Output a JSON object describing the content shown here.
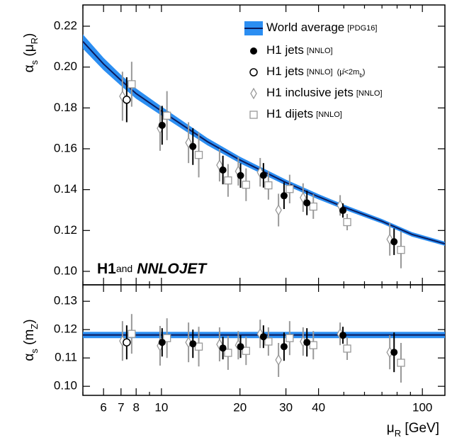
{
  "chart_data": [
    {
      "type": "errorbar",
      "log_x": true,
      "legend": "upper right",
      "ylabel": {
        "symbol": "α",
        "sub": "s",
        "open": " (μ",
        "sub2": "R",
        "close": ")"
      },
      "annotation": {
        "bold": "H1",
        "small": "and",
        "italic": "NNLOJET"
      },
      "xlim": [
        5,
        122
      ],
      "ylim": [
        0.0934,
        0.2304
      ],
      "yticks": [
        {
          "value": 0.1,
          "label": "0.10"
        },
        0.12,
        0.14,
        0.16,
        0.18,
        {
          "value": 0.2,
          "label": "0.20"
        },
        0.22
      ],
      "series": [
        {
          "name": "World average",
          "note": "[PDG16]",
          "style": "band",
          "color": "#2b8ef2",
          "line_color": "#0b1a5c",
          "x": [
            5,
            6,
            7,
            8,
            10,
            15,
            20,
            30,
            40,
            50,
            70,
            91.2,
            122
          ],
          "values": [
            0.2125,
            0.2015,
            0.1935,
            0.187,
            0.1785,
            0.1635,
            0.1545,
            0.1435,
            0.1365,
            0.1315,
            0.1245,
            0.1181,
            0.1135
          ],
          "errors": [
            0.0035,
            0.003,
            0.0027,
            0.0025,
            0.0022,
            0.0018,
            0.0016,
            0.0014,
            0.0013,
            0.0012,
            0.0011,
            0.0011,
            0.001
          ]
        },
        {
          "name": "H1 jets",
          "note": "[NNLO]",
          "style": "filled-circle",
          "color": "#000000",
          "x": [
            10.06,
            13.2,
            17.2,
            20.1,
            24.6,
            29.5,
            36.1,
            49.6,
            77.9
          ],
          "values": [
            0.1715,
            0.1611,
            0.1496,
            0.1469,
            0.147,
            0.137,
            0.1335,
            0.1298,
            0.1145
          ],
          "errors": [
            0.0095,
            0.009,
            0.007,
            0.006,
            0.006,
            0.0065,
            0.006,
            0.0035,
            0.0065
          ]
        },
        {
          "name": "H1 jets",
          "note": "[NNLO]",
          "condition": "(μ̄<2m",
          "condition_sub": "b",
          "condition_close": ")",
          "style": "open-circle",
          "color": "#000000",
          "x": [
            7.36
          ],
          "values": [
            0.184
          ],
          "errors": [
            0.011
          ]
        },
        {
          "name": "H1 inclusive jets",
          "note": "[NNLO]",
          "style": "diamond",
          "color": "#999999",
          "x": [
            7.09,
            9.88,
            12.7,
            16.7,
            19.7,
            23.9,
            28.1,
            34.9,
            48.4,
            75.0
          ],
          "values": [
            0.1857,
            0.17,
            0.163,
            0.152,
            0.149,
            0.1485,
            0.13,
            0.1361,
            0.1323,
            0.1157
          ],
          "errors": [
            0.012,
            0.011,
            0.01,
            0.008,
            0.007,
            0.007,
            0.008,
            0.007,
            0.005,
            0.008
          ]
        },
        {
          "name": "H1 dijets",
          "note": "[NNLO]",
          "style": "square",
          "color": "#999999",
          "x": [
            7.69,
            10.5,
            13.9,
            18.0,
            21.1,
            25.7,
            31.0,
            38.2,
            51.5,
            82.8
          ],
          "values": [
            0.1916,
            0.1762,
            0.157,
            0.1445,
            0.1424,
            0.1421,
            0.1403,
            0.1317,
            0.1241,
            0.1105
          ],
          "errors": [
            0.011,
            0.012,
            0.011,
            0.008,
            0.008,
            0.007,
            0.007,
            0.006,
            0.004,
            0.009
          ]
        }
      ]
    },
    {
      "type": "errorbar",
      "log_x": true,
      "ylabel": {
        "symbol": "α",
        "sub": "s",
        "open": " (m",
        "sub2": "Z",
        "close": ")"
      },
      "xlabel": {
        "symbol": "μ",
        "sub": "R",
        "unit": " [GeV]"
      },
      "xlim": [
        5,
        122
      ],
      "ylim": [
        0.0968,
        0.1358
      ],
      "xticks": [
        6,
        7,
        8,
        10,
        20,
        30,
        40,
        100
      ],
      "xminor": [
        5,
        9,
        50,
        60,
        70,
        80,
        90
      ],
      "yticks": [
        {
          "value": 0.1,
          "label": "0.10"
        },
        0.11,
        0.12,
        0.13
      ],
      "series": [
        {
          "style": "band",
          "color": "#2b8ef2",
          "line_color": "#0b1a5c",
          "x": [
            5,
            122
          ],
          "values": [
            0.1181,
            0.1181
          ],
          "errors": [
            0.0011,
            0.0011
          ]
        },
        {
          "style": "filled-circle",
          "color": "#000000",
          "x": [
            10.06,
            13.2,
            17.2,
            20.1,
            24.6,
            29.5,
            36.1,
            49.6,
            77.9
          ],
          "values": [
            0.1155,
            0.115,
            0.1135,
            0.114,
            0.1175,
            0.114,
            0.1155,
            0.118,
            0.112
          ],
          "errors": [
            0.005,
            0.005,
            0.004,
            0.004,
            0.004,
            0.005,
            0.005,
            0.003,
            0.007
          ]
        },
        {
          "style": "open-circle",
          "color": "#000000",
          "x": [
            7.36
          ],
          "values": [
            0.1155
          ],
          "errors": [
            0.006
          ]
        },
        {
          "style": "diamond",
          "color": "#999999",
          "x": [
            7.09,
            9.88,
            12.7,
            16.7,
            19.7,
            23.9,
            28.1,
            34.9,
            48.4,
            75.0
          ],
          "values": [
            0.116,
            0.1143,
            0.1155,
            0.1148,
            0.1145,
            0.1185,
            0.1093,
            0.1158,
            0.1185,
            0.112
          ],
          "errors": [
            0.007,
            0.007,
            0.007,
            0.006,
            0.005,
            0.005,
            0.006,
            0.005,
            0.004,
            0.006
          ]
        },
        {
          "style": "square",
          "color": "#999999",
          "x": [
            7.69,
            10.5,
            13.9,
            18.0,
            21.1,
            25.7,
            31.0,
            38.2,
            51.5,
            82.8
          ],
          "values": [
            0.1185,
            0.117,
            0.114,
            0.1118,
            0.1125,
            0.1158,
            0.117,
            0.1145,
            0.1133,
            0.1083
          ],
          "errors": [
            0.007,
            0.007,
            0.007,
            0.006,
            0.005,
            0.005,
            0.006,
            0.005,
            0.004,
            0.007
          ]
        }
      ]
    }
  ]
}
